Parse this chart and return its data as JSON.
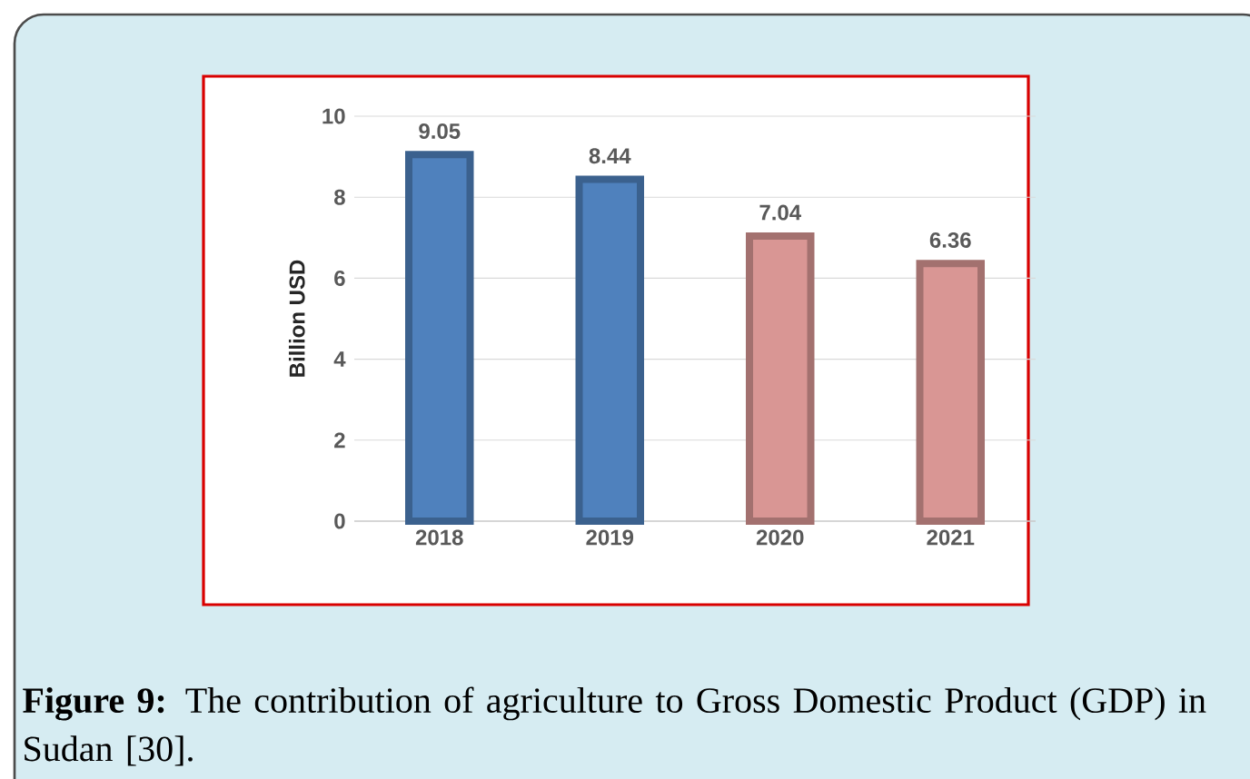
{
  "chart_data": {
    "type": "bar",
    "ylabel": "Billion USD",
    "categories": [
      "2018",
      "2019",
      "2020",
      "2021"
    ],
    "values": [
      9.05,
      8.44,
      7.04,
      6.36
    ],
    "colors": [
      "#4f81bd",
      "#4f81bd",
      "#d99694",
      "#d99694"
    ],
    "ylim": [
      0,
      10
    ],
    "yticks": [
      0,
      2,
      4,
      6,
      8,
      10
    ],
    "grid": "y",
    "data_labels": true,
    "annotations": [
      "**Figure 9:** The contribution of agriculture to Gross Domestic Product (GDP) in Sudan [30]."
    ]
  }
}
